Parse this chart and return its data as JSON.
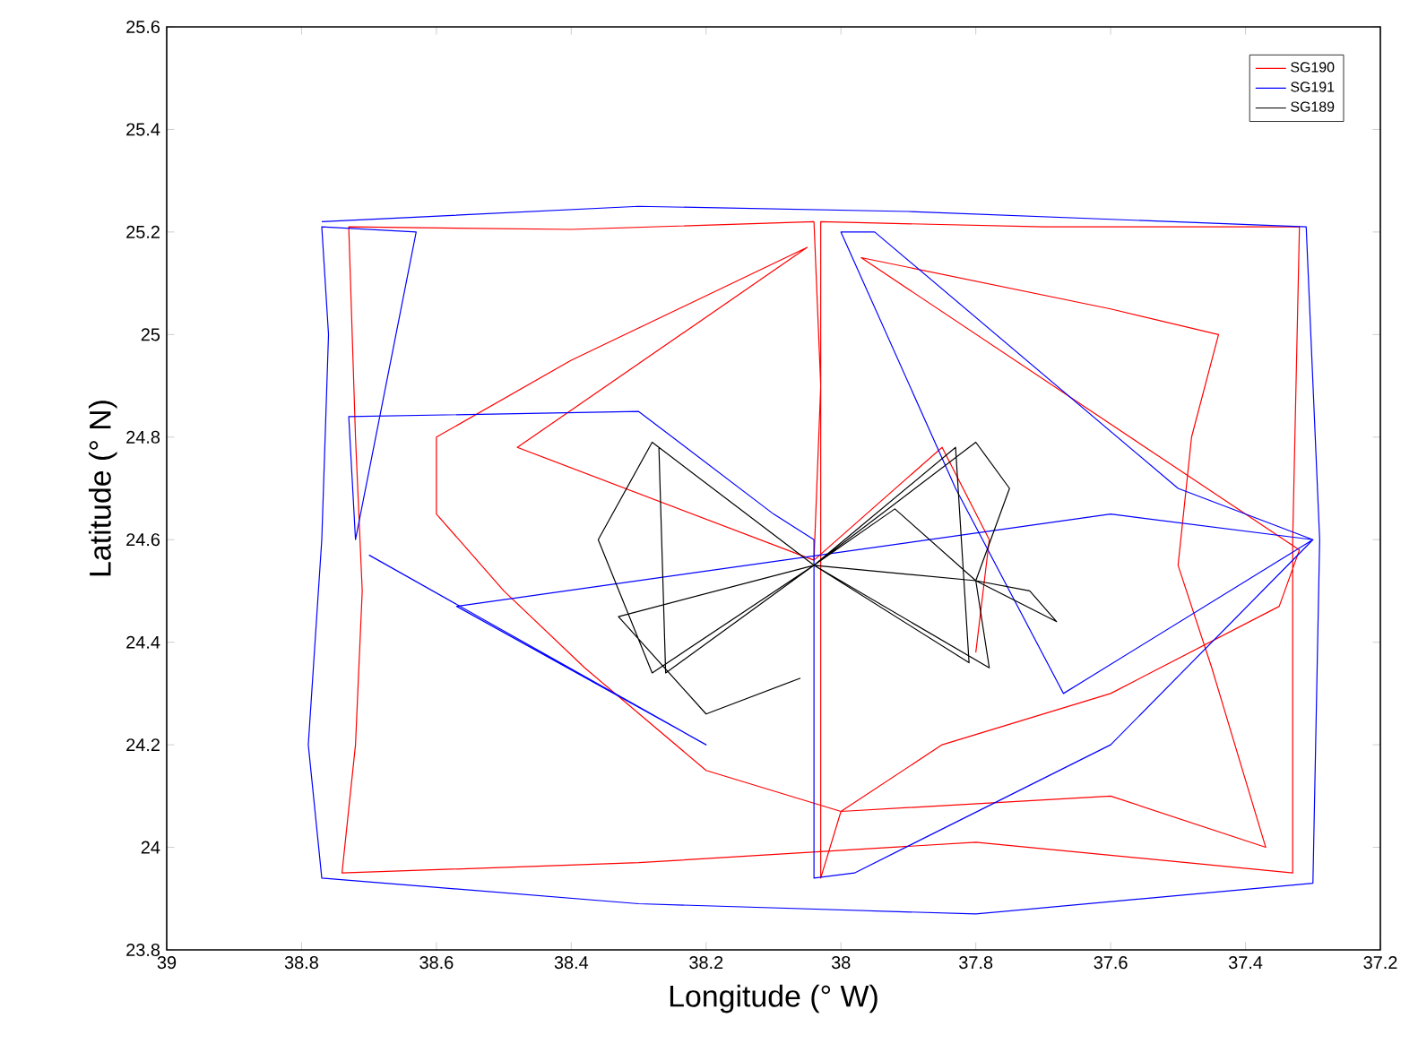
{
  "chart_data": {
    "type": "line",
    "xlabel": "Longitude (° W)",
    "ylabel": "Latitude (° N)",
    "xlim": [
      39,
      37.2
    ],
    "xticks": [
      39,
      38.8,
      38.6,
      38.4,
      38.2,
      38,
      37.8,
      37.6,
      37.4,
      37.2
    ],
    "ylim": [
      23.8,
      25.6
    ],
    "yticks": [
      23.8,
      24,
      24.2,
      24.4,
      24.6,
      24.8,
      25,
      25.2,
      25.4,
      25.6
    ],
    "legend": "top right",
    "grid": false,
    "marker": "none",
    "line_style": "solid",
    "series": [
      {
        "name": "SG190",
        "color": "#ff0000",
        "x": [
          38.04,
          38.03,
          38.04,
          38.4,
          38.73,
          38.72,
          38.71,
          38.72,
          38.74,
          38.3,
          37.8,
          37.33,
          37.33,
          37.32,
          37.7,
          38.03,
          38.03,
          38.0,
          37.85,
          37.6,
          37.35,
          37.32,
          37.48,
          37.97,
          37.6,
          37.44,
          37.48,
          37.5,
          37.45,
          37.37,
          37.6,
          38.0,
          38.2,
          38.38,
          38.5,
          38.6,
          38.6,
          38.4,
          38.05,
          38.48,
          38.04,
          37.85,
          37.78,
          37.8
        ],
        "values": [
          24.56,
          24.9,
          25.22,
          25.205,
          25.21,
          24.8,
          24.5,
          24.2,
          23.95,
          23.97,
          24.01,
          23.95,
          24.6,
          25.21,
          25.21,
          25.22,
          23.94,
          24.07,
          24.2,
          24.3,
          24.47,
          24.58,
          24.72,
          25.15,
          25.05,
          25.0,
          24.8,
          24.55,
          24.35,
          24.0,
          24.1,
          24.07,
          24.15,
          24.35,
          24.5,
          24.65,
          24.8,
          24.95,
          25.17,
          24.78,
          24.56,
          24.78,
          24.6,
          24.38
        ]
      },
      {
        "name": "SG191",
        "color": "#0000ff",
        "x": [
          38.77,
          38.3,
          37.9,
          37.31,
          37.29,
          37.3,
          37.8,
          38.3,
          38.77,
          38.79,
          38.77,
          38.76,
          38.77,
          38.63,
          38.72,
          38.73,
          38.3,
          38.1,
          38.04,
          38.04,
          37.98,
          37.6,
          37.3,
          37.5,
          37.95,
          38.0,
          37.83,
          37.67,
          37.3,
          37.6,
          38.57,
          38.2,
          38.7
        ],
        "values": [
          25.22,
          25.25,
          25.24,
          25.21,
          24.6,
          23.93,
          23.87,
          23.89,
          23.94,
          24.2,
          24.6,
          25.0,
          25.21,
          25.2,
          24.6,
          24.84,
          24.85,
          24.65,
          24.6,
          23.94,
          23.95,
          24.2,
          24.6,
          24.7,
          25.2,
          25.2,
          24.7,
          24.3,
          24.6,
          24.65,
          24.47,
          24.2,
          24.57
        ]
      },
      {
        "name": "SG189",
        "color": "#000000",
        "x": [
          38.04,
          38.28,
          38.36,
          38.28,
          38.04,
          37.8,
          37.75,
          37.8,
          37.78,
          38.04,
          38.27,
          38.26,
          38.04,
          37.83,
          37.81,
          38.04,
          37.8,
          37.68,
          37.72,
          37.8,
          37.92,
          38.04,
          38.33,
          38.2,
          38.06
        ],
        "values": [
          24.55,
          24.79,
          24.6,
          24.34,
          24.55,
          24.79,
          24.7,
          24.52,
          24.35,
          24.55,
          24.78,
          24.34,
          24.55,
          24.78,
          24.36,
          24.55,
          24.52,
          24.44,
          24.5,
          24.52,
          24.66,
          24.55,
          24.45,
          24.26,
          24.33
        ]
      }
    ]
  }
}
